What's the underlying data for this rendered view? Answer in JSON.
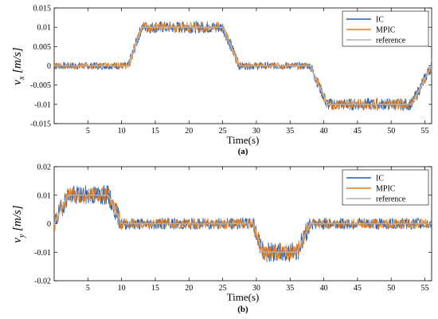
{
  "chart_data": [
    {
      "type": "line",
      "panel": "(a)",
      "xlabel": "Time(s)",
      "ylabel": "v_x [m/s]",
      "xlim": [
        0,
        56
      ],
      "ylim": [
        -0.015,
        0.015
      ],
      "xticks": [
        5,
        10,
        15,
        20,
        25,
        30,
        35,
        40,
        45,
        50,
        55
      ],
      "yticks": [
        0.015,
        0.01,
        0.005,
        0,
        -0.005,
        -0.01,
        -0.015
      ],
      "ytick_labels": [
        "0.015",
        "0.01",
        "0.005",
        "0",
        "-0.005",
        "-0.01",
        "-0.015"
      ],
      "legend": "top-right",
      "series": [
        {
          "name": "IC",
          "color": "#1f5fb4",
          "noise_amplitude": 0.0016
        },
        {
          "name": "MPIC",
          "color": "#e07b1f",
          "noise_amplitude": 0.0014
        },
        {
          "name": "reference",
          "color": "#b0b0b0",
          "x": [
            0,
            11,
            13,
            25,
            27.5,
            38,
            40.5,
            53,
            56
          ],
          "y": [
            0,
            0,
            0.01,
            0.01,
            0,
            0,
            -0.01,
            -0.01,
            0.0
          ]
        }
      ]
    },
    {
      "type": "line",
      "panel": "(b)",
      "xlabel": "Time(s)",
      "ylabel": "v_y [m/s]",
      "xlim": [
        0,
        56
      ],
      "ylim": [
        -0.02,
        0.02
      ],
      "xticks": [
        5,
        10,
        15,
        20,
        25,
        30,
        35,
        40,
        45,
        50,
        55
      ],
      "yticks": [
        0.02,
        0.01,
        0,
        -0.01,
        -0.02
      ],
      "ytick_labels": [
        "0.02",
        "0.01",
        "0",
        "-0.01",
        "-0.02"
      ],
      "legend": "top-right",
      "series": [
        {
          "name": "IC",
          "color": "#1f5fb4",
          "noise_amplitude": 0.0035
        },
        {
          "name": "MPIC",
          "color": "#e07b1f",
          "noise_amplitude": 0.003
        },
        {
          "name": "reference",
          "color": "#b0b0b0",
          "x": [
            0,
            2,
            8,
            10,
            29.5,
            31,
            36,
            38,
            56
          ],
          "y": [
            0,
            0.01,
            0.01,
            0,
            0,
            -0.01,
            -0.01,
            0,
            0
          ]
        }
      ]
    }
  ]
}
